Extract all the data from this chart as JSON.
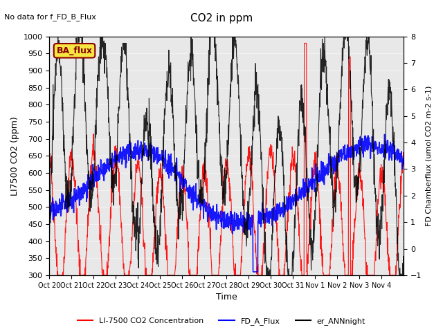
{
  "title": "CO2 in ppm",
  "no_data_text": "No data for f_FD_B_Flux",
  "ba_flux_label": "BA_flux",
  "xlabel": "Time",
  "ylabel_left": "LI7500 CO2 (ppm)",
  "ylabel_right": "FD Chamberflux (umol CO2 m-2 s-1)",
  "ylim_left": [
    300,
    1000
  ],
  "ylim_right": [
    -1.0,
    8.0
  ],
  "yticks_left": [
    300,
    350,
    400,
    450,
    500,
    550,
    600,
    650,
    700,
    750,
    800,
    850,
    900,
    950,
    1000
  ],
  "yticks_right": [
    -1.0,
    0.0,
    1.0,
    2.0,
    3.0,
    4.0,
    5.0,
    6.0,
    7.0,
    8.0
  ],
  "xtick_labels": [
    "Oct 20",
    "Oct 21",
    "Oct 22",
    "Oct 23",
    "Oct 24",
    "Oct 25",
    "Oct 26",
    "Oct 27",
    "Oct 28",
    "Oct 29",
    "Oct 30",
    "Oct 31",
    "Nov 1",
    "Nov 2",
    "Nov 3",
    "Nov 4"
  ],
  "legend_entries": [
    "LI-7500 CO2 Concentration",
    "FD_A_Flux",
    "er_ANNnight"
  ],
  "line_colors": [
    "red",
    "blue",
    "black"
  ],
  "plot_bg_color": "#e8e8e8",
  "n_points": 1440,
  "seed": 42
}
